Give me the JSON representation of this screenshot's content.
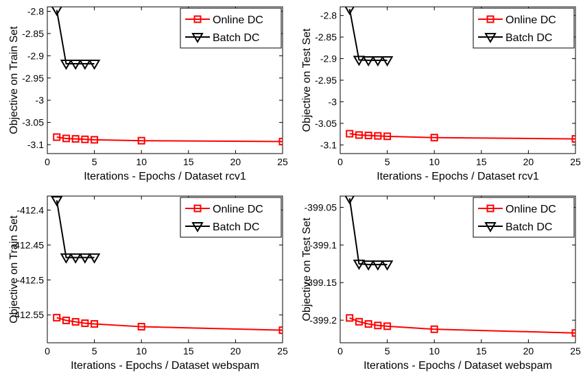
{
  "chart_data": [
    {
      "type": "line",
      "title": "",
      "xlabel": "Iterations - Epochs / Dataset rcv1",
      "ylabel": "Objective on Train Set",
      "xlim": [
        0,
        25
      ],
      "ylim": [
        -3.12,
        -2.79
      ],
      "xticks": [
        "0",
        "5",
        "10",
        "15",
        "20",
        "25"
      ],
      "yticks": [
        "-2.8",
        "-2.85",
        "-2.9",
        "-2.95",
        "-3",
        "-3.05",
        "-3.1"
      ],
      "grid": false,
      "legend": "top-right",
      "series": [
        {
          "name": "Online DC",
          "color": "#ff0000",
          "marker": "square",
          "x": [
            1,
            2,
            3,
            4,
            5,
            10,
            25
          ],
          "y": [
            -3.083,
            -3.086,
            -3.087,
            -3.088,
            -3.089,
            -3.091,
            -3.093
          ]
        },
        {
          "name": "Batch DC",
          "color": "#000000",
          "marker": "triangle-down",
          "x": [
            1,
            2,
            3,
            4,
            5
          ],
          "y": [
            -2.797,
            -2.918,
            -2.918,
            -2.918,
            -2.918
          ]
        }
      ]
    },
    {
      "type": "line",
      "title": "",
      "xlabel": "Iterations - Epochs / Dataset rcv1",
      "ylabel": "Objective on Test Set",
      "xlim": [
        0,
        25
      ],
      "ylim": [
        -3.12,
        -2.78
      ],
      "xticks": [
        "0",
        "5",
        "10",
        "15",
        "20",
        "25"
      ],
      "yticks": [
        "-2.8",
        "-2.85",
        "-2.9",
        "-2.95",
        "-3",
        "-3.05",
        "-3.1"
      ],
      "grid": false,
      "legend": "top-right",
      "series": [
        {
          "name": "Online DC",
          "color": "#ff0000",
          "marker": "square",
          "x": [
            1,
            2,
            3,
            4,
            5,
            10,
            25
          ],
          "y": [
            -3.074,
            -3.077,
            -3.078,
            -3.079,
            -3.08,
            -3.083,
            -3.086
          ]
        },
        {
          "name": "Batch DC",
          "color": "#000000",
          "marker": "triangle-down",
          "x": [
            1,
            2,
            3,
            4,
            5
          ],
          "y": [
            -2.785,
            -2.903,
            -2.904,
            -2.904,
            -2.904
          ]
        }
      ]
    },
    {
      "type": "line",
      "title": "",
      "xlabel": "Iterations - Epochs / Dataset webspam",
      "ylabel": "Objective on Train Set",
      "xlim": [
        0,
        25
      ],
      "ylim": [
        -412.59,
        -412.38
      ],
      "xticks": [
        "0",
        "5",
        "10",
        "15",
        "20",
        "25"
      ],
      "yticks": [
        "-412.4",
        "-412.45",
        "-412.5",
        "-412.55"
      ],
      "grid": false,
      "legend": "top-right",
      "series": [
        {
          "name": "Online DC",
          "color": "#ff0000",
          "marker": "square",
          "x": [
            1,
            2,
            3,
            4,
            5,
            10,
            25
          ],
          "y": [
            -412.554,
            -412.558,
            -412.56,
            -412.562,
            -412.563,
            -412.567,
            -412.572
          ]
        },
        {
          "name": "Batch DC",
          "color": "#000000",
          "marker": "triangle-down",
          "x": [
            1,
            2,
            3,
            4,
            5
          ],
          "y": [
            -412.386,
            -412.468,
            -412.468,
            -412.468,
            -412.468
          ]
        }
      ]
    },
    {
      "type": "line",
      "title": "",
      "xlabel": "Iterations - Epochs / Dataset webspam",
      "ylabel": "Objective on Test Set",
      "xlim": [
        0,
        25
      ],
      "ylim": [
        -399.23,
        -399.035
      ],
      "xticks": [
        "0",
        "5",
        "10",
        "15",
        "20",
        "25"
      ],
      "yticks": [
        "-399.05",
        "-399.1",
        "-399.15",
        "-399.2"
      ],
      "grid": false,
      "legend": "top-right",
      "series": [
        {
          "name": "Online DC",
          "color": "#ff0000",
          "marker": "square",
          "x": [
            1,
            2,
            3,
            4,
            5,
            10,
            25
          ],
          "y": [
            -399.197,
            -399.202,
            -399.205,
            -399.207,
            -399.208,
            -399.212,
            -399.217
          ]
        },
        {
          "name": "Batch DC",
          "color": "#000000",
          "marker": "triangle-down",
          "x": [
            1,
            2,
            3,
            4,
            5
          ],
          "y": [
            -399.038,
            -399.125,
            -399.126,
            -399.126,
            -399.126
          ]
        }
      ]
    }
  ]
}
